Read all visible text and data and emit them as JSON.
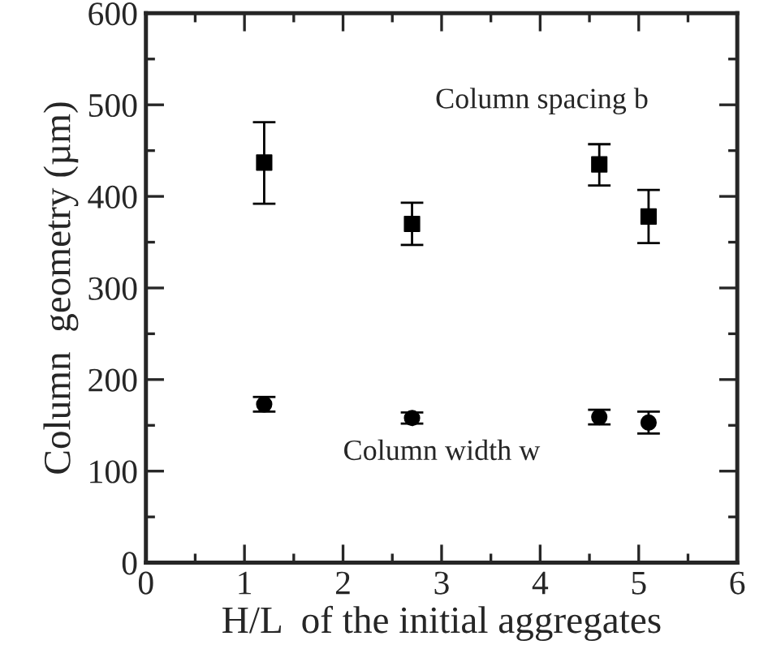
{
  "chart_data": {
    "type": "scatter",
    "xlabel": "H/L  of the initial aggregates",
    "ylabel": "Column  geometry (µm)",
    "x": [
      1.2,
      2.7,
      4.6,
      5.1
    ],
    "series": [
      {
        "name": "Column spacing b",
        "color": "#000000",
        "marker": "square",
        "values": [
          437,
          370,
          435,
          378
        ],
        "errors": [
          [
            392,
            481
          ],
          [
            347,
            393
          ],
          [
            412,
            457
          ],
          [
            349,
            407
          ]
        ]
      },
      {
        "name": "Column width w",
        "color": "#000000",
        "marker": "circle",
        "values": [
          173,
          158,
          159,
          153
        ],
        "errors": [
          [
            165,
            181
          ],
          [
            152,
            164
          ],
          [
            151,
            167
          ],
          [
            141,
            165
          ]
        ]
      }
    ],
    "xlim": [
      0,
      6
    ],
    "xticks": [
      0,
      1,
      2,
      3,
      4,
      5,
      6
    ],
    "ylim": [
      0,
      600
    ],
    "yticks": [
      0,
      100,
      200,
      300,
      400,
      500,
      600
    ],
    "grid": false,
    "legend": false
  }
}
